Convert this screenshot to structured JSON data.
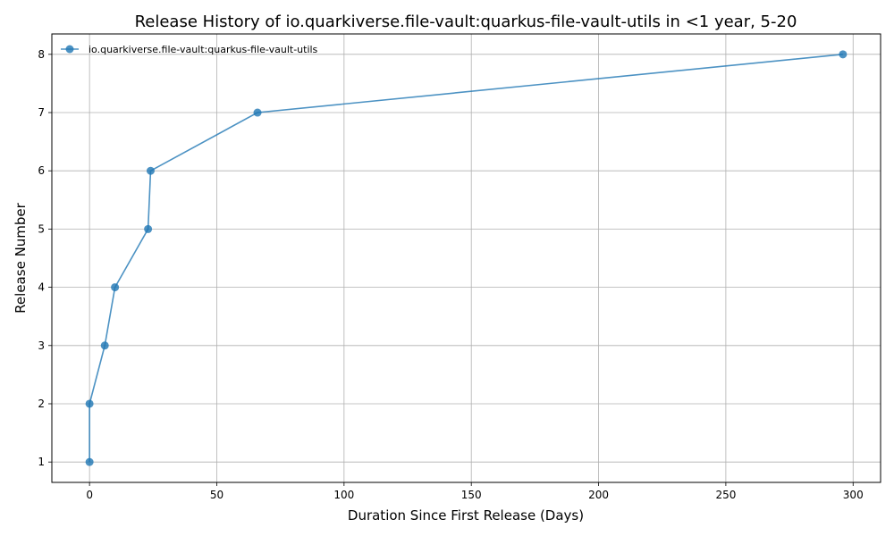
{
  "chart_data": {
    "type": "line",
    "title": "Release History of io.quarkiverse.file-vault:quarkus-file-vault-utils in <1 year, 5-20",
    "xlabel": "Duration Since First Release (Days)",
    "ylabel": "Release Number",
    "xlim": [
      -14.8,
      310.8
    ],
    "ylim": [
      0.65,
      8.35
    ],
    "xticks": [
      0,
      50,
      100,
      150,
      200,
      250,
      300
    ],
    "yticks": [
      1,
      2,
      3,
      4,
      5,
      6,
      7,
      8
    ],
    "grid": true,
    "legend_position": "top-left",
    "series": [
      {
        "name": "io.quarkiverse.file-vault:quarkus-file-vault-utils",
        "color": "#1f77b4",
        "x": [
          0,
          0,
          6,
          10,
          23,
          24,
          66,
          296
        ],
        "y": [
          1,
          2,
          3,
          4,
          5,
          6,
          7,
          8
        ]
      }
    ]
  }
}
